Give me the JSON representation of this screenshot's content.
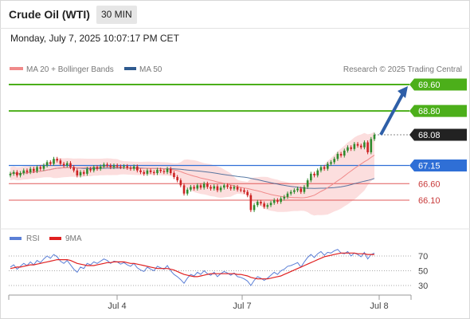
{
  "header": {
    "title": "Crude Oil (WTI)",
    "timeframe": "30 MIN",
    "datetime": "Monday, July 7, 2025 10:07:17 PM CET"
  },
  "legend": {
    "ma20": {
      "label": "MA 20 + Bollinger Bands",
      "color": "#f08a8a"
    },
    "ma50": {
      "label": "MA 50",
      "color": "#2f5a8f"
    },
    "credit": "Research © 2025 Trading Central"
  },
  "rsi_legend": {
    "rsi": {
      "label": "RSI",
      "color": "#5b7fd6"
    },
    "ma9": {
      "label": "9MA",
      "color": "#e02020"
    }
  },
  "colors": {
    "resistance": "#4caf1a",
    "pivot": "#2f6fd6",
    "support": "#e05a5a",
    "last": "#222222",
    "arrow": "#2e5fa8",
    "candle_up": "#2e8b2e",
    "candle_down": "#cc2222",
    "band": "#fbd3d3"
  },
  "chart_data": {
    "type": "candlestick",
    "instrument": "Crude Oil (WTI)",
    "interval": "30 MIN",
    "x_tick_labels": [
      "Jul 4",
      "Jul 7",
      "Jul 8"
    ],
    "levels": [
      {
        "kind": "resistance",
        "value": 69.6,
        "label": "69.60"
      },
      {
        "kind": "resistance",
        "value": 68.8,
        "label": "68.80"
      },
      {
        "kind": "last",
        "value": 68.08,
        "label": "68.08"
      },
      {
        "kind": "pivot",
        "value": 67.15,
        "label": "67.15"
      },
      {
        "kind": "support",
        "value": 66.6,
        "label": "66.60"
      },
      {
        "kind": "support",
        "value": 66.1,
        "label": "66.10"
      }
    ],
    "arrow": {
      "from": 68.08,
      "to": 69.6,
      "direction": "up"
    },
    "price_candles_close": [
      66.9,
      66.95,
      66.85,
      66.92,
      67.0,
      66.95,
      67.05,
      66.98,
      67.1,
      67.05,
      67.15,
      67.25,
      67.2,
      67.35,
      67.3,
      67.2,
      67.15,
      67.22,
      67.1,
      67.0,
      66.85,
      66.95,
      66.9,
      67.05,
      67.0,
      67.1,
      67.05,
      67.12,
      67.18,
      67.15,
      67.1,
      67.15,
      67.12,
      67.1,
      67.13,
      67.08,
      67.05,
      67.12,
      67.0,
      66.95,
      66.9,
      67.0,
      66.95,
      66.92,
      67.02,
      66.98,
      66.95,
      67.05,
      66.92,
      66.8,
      66.7,
      66.55,
      66.3,
      66.42,
      66.5,
      66.45,
      66.55,
      66.48,
      66.6,
      66.5,
      66.45,
      66.52,
      66.4,
      66.48,
      66.55,
      66.5,
      66.45,
      66.5,
      66.42,
      66.4,
      66.35,
      66.25,
      65.8,
      65.95,
      66.05,
      66.0,
      65.9,
      65.95,
      66.02,
      66.1,
      66.05,
      66.15,
      66.2,
      66.3,
      66.35,
      66.4,
      66.45,
      66.35,
      66.5,
      66.7,
      66.9,
      66.85,
      67.0,
      67.1,
      67.05,
      67.2,
      67.25,
      67.35,
      67.5,
      67.45,
      67.6,
      67.7,
      67.65,
      67.8,
      67.75,
      67.7,
      67.85,
      67.55,
      67.95,
      68.08
    ],
    "rsi": {
      "levels": [
        70,
        50,
        30
      ],
      "ylim": [
        20,
        80
      ],
      "rsi_values": [
        55,
        58,
        52,
        56,
        60,
        57,
        62,
        58,
        64,
        61,
        66,
        70,
        67,
        72,
        69,
        63,
        60,
        64,
        58,
        52,
        48,
        55,
        53,
        60,
        58,
        62,
        60,
        63,
        66,
        64,
        60,
        63,
        62,
        59,
        61,
        58,
        56,
        60,
        54,
        51,
        49,
        55,
        52,
        50,
        56,
        54,
        52,
        57,
        50,
        45,
        42,
        38,
        33,
        40,
        45,
        43,
        48,
        45,
        50,
        46,
        44,
        48,
        42,
        46,
        49,
        47,
        44,
        47,
        42,
        41,
        39,
        36,
        30,
        37,
        42,
        40,
        37,
        40,
        44,
        48,
        45,
        50,
        52,
        56,
        57,
        59,
        61,
        55,
        62,
        68,
        72,
        68,
        73,
        76,
        71,
        75,
        74,
        77,
        79,
        74,
        73,
        76,
        70,
        74,
        72,
        69,
        75,
        66,
        72,
        74
      ],
      "ma9_values": [
        53,
        54,
        55,
        55,
        56,
        57,
        58,
        58,
        59,
        60,
        61,
        62,
        63,
        64,
        65,
        65,
        65,
        65,
        64,
        62,
        60,
        59,
        58,
        57,
        57,
        57,
        58,
        59,
        60,
        61,
        61,
        62,
        62,
        62,
        62,
        61,
        60,
        60,
        59,
        58,
        57,
        56,
        55,
        54,
        53,
        53,
        53,
        53,
        52,
        51,
        49,
        47,
        45,
        44,
        43,
        42,
        42,
        43,
        44,
        45,
        46,
        46,
        46,
        46,
        46,
        46,
        46,
        46,
        45,
        45,
        44,
        43,
        41,
        40,
        39,
        39,
        39,
        39,
        40,
        41,
        42,
        43,
        45,
        47,
        49,
        51,
        53,
        55,
        57,
        59,
        61,
        63,
        65,
        67,
        69,
        70,
        71,
        72,
        73,
        74,
        74,
        74,
        74,
        74,
        73,
        73,
        73,
        72,
        72,
        72
      ]
    }
  }
}
